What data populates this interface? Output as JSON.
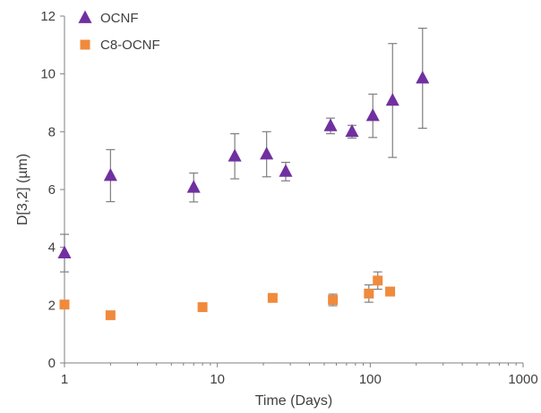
{
  "chart_data": {
    "type": "scatter",
    "title": "",
    "xlabel": "Time (Days)",
    "ylabel": "D[3,2] (µm)",
    "x_scale": "log",
    "xlim": [
      1,
      1000
    ],
    "ylim": [
      0,
      12
    ],
    "x_ticks": [
      1,
      10,
      100,
      1000
    ],
    "x_tick_labels": [
      "1",
      "10",
      "100",
      "1000"
    ],
    "y_ticks": [
      0,
      2,
      4,
      6,
      8,
      10,
      12
    ],
    "y_tick_labels": [
      "0",
      "2",
      "4",
      "6",
      "8",
      "10",
      "12"
    ],
    "grid": false,
    "legend_position": "top-left",
    "series": [
      {
        "name": "OCNF",
        "marker": "triangle",
        "color": "#7030A0",
        "points": [
          {
            "x": 1,
            "y": 3.8,
            "err": 0.65
          },
          {
            "x": 2,
            "y": 6.48,
            "err": 0.9
          },
          {
            "x": 7,
            "y": 6.07,
            "err": 0.5
          },
          {
            "x": 13,
            "y": 7.15,
            "err": 0.78
          },
          {
            "x": 21,
            "y": 7.22,
            "err": 0.78
          },
          {
            "x": 28,
            "y": 6.62,
            "err": 0.32
          },
          {
            "x": 55,
            "y": 8.2,
            "err": 0.27
          },
          {
            "x": 76,
            "y": 8.0,
            "err": 0.22
          },
          {
            "x": 104,
            "y": 8.55,
            "err": 0.75
          },
          {
            "x": 140,
            "y": 9.08,
            "err": 1.97
          },
          {
            "x": 220,
            "y": 9.85,
            "err": 1.73
          }
        ]
      },
      {
        "name": "C8-OCNF",
        "marker": "square",
        "color": "#F08A3C",
        "points": [
          {
            "x": 1,
            "y": 2.02,
            "err": 0.05
          },
          {
            "x": 2,
            "y": 1.65,
            "err": 0.05
          },
          {
            "x": 8,
            "y": 1.93,
            "err": 0.05
          },
          {
            "x": 23,
            "y": 2.25,
            "err": 0.05
          },
          {
            "x": 57,
            "y": 2.18,
            "err": 0.2
          },
          {
            "x": 98,
            "y": 2.4,
            "err": 0.3
          },
          {
            "x": 112,
            "y": 2.85,
            "err": 0.3
          },
          {
            "x": 135,
            "y": 2.47,
            "err": 0.05
          }
        ]
      }
    ]
  }
}
